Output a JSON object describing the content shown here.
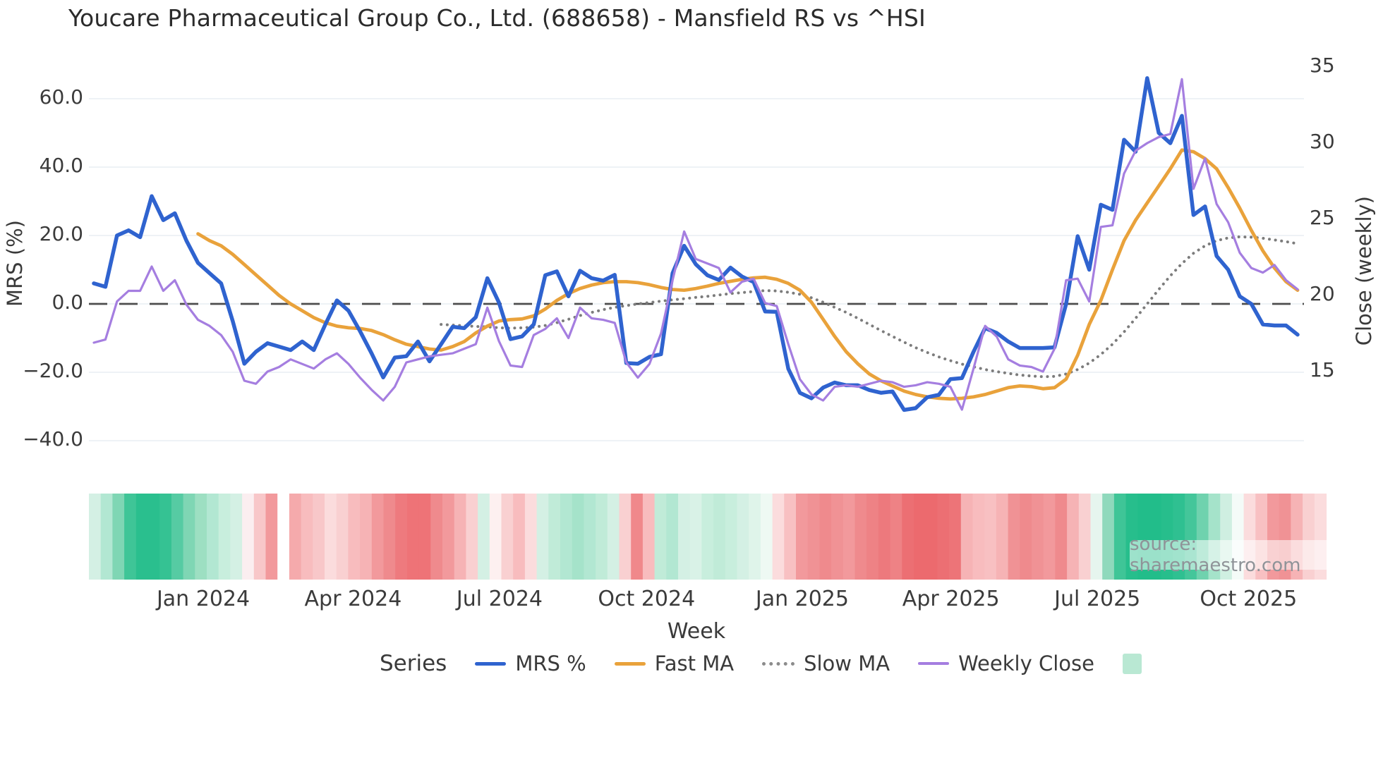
{
  "title": "Youcare Pharmaceutical Group Co., Ltd. (688658) - Mansfield RS vs ^HSI",
  "watermark": "source: sharemaestro.com",
  "axes": {
    "left": {
      "label": "MRS (%)",
      "ticks": [
        "60.0",
        "40.0",
        "20.0",
        "0.0",
        "−20.0",
        "−40.0"
      ],
      "tick_values": [
        60,
        40,
        20,
        0,
        -20,
        -40
      ],
      "range": [
        -47,
        72
      ]
    },
    "right": {
      "label": "Close (weekly)",
      "ticks": [
        "35",
        "30",
        "25",
        "20",
        "15"
      ],
      "tick_values": [
        35,
        30,
        25,
        20,
        15
      ],
      "range": [
        12.5,
        35.7
      ]
    },
    "x": {
      "label": "Week",
      "ticks": [
        {
          "label": "Jan 2024",
          "week_index": 9.45
        },
        {
          "label": "Apr 2024",
          "week_index": 22.4
        },
        {
          "label": "Jul 2024",
          "week_index": 35.05
        },
        {
          "label": "Oct 2024",
          "week_index": 47.75
        },
        {
          "label": "Jan 2025",
          "week_index": 61.2
        },
        {
          "label": "Apr 2025",
          "week_index": 74.05
        },
        {
          "label": "Jul 2025",
          "week_index": 86.7
        },
        {
          "label": "Oct 2025",
          "week_index": 99.75
        }
      ]
    }
  },
  "legend": {
    "title": "Series",
    "items": [
      {
        "label": "MRS %",
        "swatch": "line",
        "color": "#2f63cf"
      },
      {
        "label": "Fast MA",
        "swatch": "line",
        "color": "#e9a23b"
      },
      {
        "label": "Slow MA",
        "swatch": "dotted",
        "color": "#8c8c8c"
      },
      {
        "label": "Weekly Close",
        "swatch": "thin",
        "color": "#a57ee0"
      },
      {
        "label": "",
        "swatch": "square",
        "color": "#b9e8d3"
      }
    ]
  },
  "colors": {
    "mrs": "#2f63cf",
    "fast_ma": "#e9a23b",
    "slow_ma": "#7c7c7c",
    "weekly_close": "#a57ee0",
    "zero_dash": "#4d4d4d",
    "grid": "#e9edf3",
    "heat_green_max": "#22bd8a",
    "heat_red_max": "#ec6a6e"
  },
  "chart_data": {
    "type": "line",
    "title": "Youcare Pharmaceutical Group Co., Ltd. (688658) - Mansfield RS vs ^HSI",
    "xlabel": "Week",
    "ylabel_left": "MRS (%)",
    "ylabel_right": "Close (weekly)",
    "x_unit": "week_index",
    "weeks": 105,
    "grid": "horizontal-only",
    "legend_position": "bottom",
    "series": [
      {
        "name": "MRS %",
        "axis": "left",
        "style": "solid",
        "color": "#2f63cf",
        "width": 5.5,
        "values": [
          6,
          5,
          20,
          21.5,
          19.5,
          31.5,
          24.5,
          26.5,
          18.5,
          12,
          9,
          6,
          -5,
          -17.5,
          -14,
          -11.5,
          -12.5,
          -13.5,
          -11,
          -13.5,
          -6,
          1,
          -2,
          -8,
          -14.5,
          -21.5,
          -15.7,
          -15.3,
          -11,
          -16.8,
          -11.8,
          -6.7,
          -7.1,
          -3.9,
          7.5,
          0.4,
          -10.3,
          -9.5,
          -6,
          8.4,
          9.5,
          2.2,
          9.7,
          7.5,
          6.8,
          8.5,
          -17.3,
          -17.5,
          -15.5,
          -14.7,
          9,
          17,
          11.6,
          8.4,
          7,
          10.6,
          8,
          6.4,
          -2.2,
          -2.3,
          -19,
          -26,
          -27.6,
          -24.5,
          -23,
          -23.8,
          -23.8,
          -25.2,
          -26,
          -25.6,
          -31,
          -30.5,
          -27.3,
          -26.6,
          -22,
          -21.7,
          -14,
          -7.1,
          -8.5,
          -11,
          -12.9,
          -12.9,
          -12.9,
          -12.7,
          0,
          19.8,
          10,
          29,
          27.5,
          48,
          44.5,
          66,
          50,
          47,
          55,
          26,
          28.5,
          14,
          10,
          2.2,
          0,
          -6,
          -6.3,
          -6.3,
          -9
        ]
      },
      {
        "name": "Fast MA",
        "axis": "left",
        "style": "solid",
        "color": "#e9a23b",
        "width": 4.8,
        "values": [
          null,
          null,
          null,
          null,
          null,
          null,
          null,
          null,
          null,
          20.5,
          18.5,
          17,
          14.5,
          11.5,
          8.5,
          5.5,
          2.5,
          0,
          -2,
          -4,
          -5.5,
          -6.5,
          -7,
          -7.2,
          -7.8,
          -9,
          -10.5,
          -11.8,
          -12.5,
          -13.2,
          -13.5,
          -12.5,
          -11,
          -8.5,
          -6.5,
          -5,
          -4.6,
          -4.4,
          -3.5,
          -1.5,
          1,
          3,
          4.5,
          5.5,
          6.2,
          6.5,
          6.5,
          6.2,
          5.6,
          4.8,
          4.2,
          4,
          4.5,
          5.2,
          6,
          6.6,
          7.2,
          7.6,
          7.8,
          7.2,
          6,
          4,
          0.5,
          -4.5,
          -9.5,
          -14,
          -17.5,
          -20.5,
          -22.5,
          -24,
          -25.5,
          -26.5,
          -27.2,
          -27.6,
          -27.8,
          -27.6,
          -27.2,
          -26.5,
          -25.5,
          -24.5,
          -24,
          -24.2,
          -24.8,
          -24.5,
          -22,
          -15,
          -6,
          1,
          10,
          18.5,
          24.5,
          29.5,
          34.5,
          39.5,
          45,
          44.5,
          42.5,
          39.5,
          34,
          28,
          21.5,
          15.5,
          10.5,
          6.5,
          4
        ]
      },
      {
        "name": "Slow MA",
        "axis": "left",
        "style": "dotted",
        "color": "#7c7c7c",
        "width": 4,
        "values": [
          null,
          null,
          null,
          null,
          null,
          null,
          null,
          null,
          null,
          null,
          null,
          null,
          null,
          null,
          null,
          null,
          null,
          null,
          null,
          null,
          null,
          null,
          null,
          null,
          null,
          null,
          null,
          null,
          null,
          null,
          -6,
          -6.2,
          -6.4,
          -6.6,
          -6.7,
          -7,
          -7.1,
          -7,
          -6.8,
          -6.3,
          -5.5,
          -4.5,
          -3.4,
          -2.5,
          -1.7,
          -1,
          -0.5,
          0,
          0.4,
          0.8,
          1.2,
          1.5,
          1.9,
          2.2,
          2.6,
          3,
          3.3,
          3.6,
          3.9,
          3.8,
          3.4,
          2.8,
          1.8,
          0.5,
          -1,
          -2.5,
          -4.2,
          -6,
          -7.8,
          -9.5,
          -11.2,
          -12.8,
          -14.2,
          -15.5,
          -16.6,
          -17.6,
          -18.4,
          -19.2,
          -19.8,
          -20.3,
          -20.8,
          -21.1,
          -21.3,
          -21.2,
          -20.5,
          -19.2,
          -17.3,
          -14.8,
          -11.8,
          -8.2,
          -4.2,
          0,
          4.2,
          8.2,
          11.8,
          14.8,
          17,
          18.5,
          19.3,
          19.6,
          19.5,
          19.2,
          18.7,
          18.2,
          17.6
        ]
      },
      {
        "name": "Weekly Close",
        "axis": "right",
        "style": "solid",
        "color": "#a57ee0",
        "width": 3.2,
        "values": [
          16.9,
          17.1,
          19.6,
          20.3,
          20.3,
          21.9,
          20.3,
          21,
          19.4,
          18.4,
          18,
          17.4,
          16.3,
          14.4,
          14.2,
          15,
          15.3,
          15.8,
          15.5,
          15.2,
          15.8,
          16.2,
          15.5,
          14.6,
          13.8,
          13.1,
          14,
          15.6,
          15.8,
          16,
          16.1,
          16.2,
          16.5,
          16.8,
          19.2,
          17,
          15.4,
          15.3,
          17.4,
          17.8,
          18.5,
          17.2,
          19.2,
          18.5,
          18.4,
          18.2,
          15.6,
          14.6,
          15.5,
          17.5,
          21,
          24.2,
          22.4,
          22.1,
          21.8,
          20.2,
          20.9,
          21.1,
          19.5,
          19.3,
          16.8,
          14.5,
          13.5,
          13.1,
          14,
          14.1,
          14,
          14.2,
          14.4,
          14.3,
          14,
          14.1,
          14.3,
          14.2,
          14,
          12.5,
          15.2,
          18,
          17.3,
          15.8,
          15.4,
          15.3,
          15,
          16.5,
          21,
          21.1,
          19.6,
          24.5,
          24.6,
          28,
          29.5,
          30,
          30.4,
          30.6,
          34.2,
          27,
          29,
          26,
          24.8,
          22.8,
          21.8,
          21.5,
          22,
          21,
          20.4
        ]
      }
    ],
    "zero_reference_line": {
      "axis": "left",
      "value": 0,
      "style": "dashed"
    },
    "heatmap_strip": {
      "description": "weekly relative-strength heat band, red=weak green=strong",
      "colors": [
        "#d4f0e4",
        "#b2e7d2",
        "#7fd6b4",
        "#3fc597",
        "#2abf8e",
        "#2abf8e",
        "#35c293",
        "#56cba3",
        "#7fd6b4",
        "#9ddfc2",
        "#b2e7d2",
        "#c8eedd",
        "#d4f0e4",
        "#fbeef0",
        "#f8c7c9",
        "#f2999c",
        "#ffffff",
        "#f5aaac",
        "#f8bcbe",
        "#f8c7c9",
        "#fbdcdd",
        "#f9d0d1",
        "#f8bcbe",
        "#f6b3b5",
        "#f2999c",
        "#ef8a8d",
        "#ee7a7e",
        "#ee7377",
        "#ee7377",
        "#ef8a8d",
        "#f2999c",
        "#f6b3b5",
        "#f9d0d1",
        "#d4f0e4",
        "#fdf0f0",
        "#f9d0d1",
        "#f8bcbe",
        "#fbdcdd",
        "#d4f0e4",
        "#c0ebd8",
        "#b2e7d2",
        "#a5e3ca",
        "#b2e7d2",
        "#c0ebd8",
        "#d4f0e4",
        "#f9d0d1",
        "#f0888b",
        "#f8bcbe",
        "#c0ebd8",
        "#b2e7d2",
        "#d4f0e4",
        "#d9f2e7",
        "#c8eedd",
        "#c0ebd8",
        "#c8eedd",
        "#d4f0e4",
        "#dff4ea",
        "#eef9f3",
        "#fbdcdd",
        "#f8c0c2",
        "#f2999c",
        "#f09295",
        "#ef8a8d",
        "#f09295",
        "#f2999c",
        "#ef8a8d",
        "#ee8285",
        "#ed797d",
        "#ee8285",
        "#ec6f73",
        "#ec6a6e",
        "#ec6a6e",
        "#ec6f73",
        "#ed7478",
        "#f6b3b5",
        "#f8bcbe",
        "#f8c0c2",
        "#f6b3b5",
        "#f09295",
        "#ef8a8d",
        "#f09295",
        "#f2999c",
        "#ef8a8d",
        "#f6b3b5",
        "#f9d0d1",
        "#e6f5ee",
        "#8fd9bc",
        "#3fc597",
        "#27be8c",
        "#22bd8a",
        "#22bd8a",
        "#27be8c",
        "#2fc091",
        "#44c69a",
        "#6fd2ae",
        "#a5e3ca",
        "#cfefe1",
        "#f4fbf8",
        "#fbdcdd",
        "#f8c0c2",
        "#f2999c",
        "#f09295",
        "#f6b3b5",
        "#f9d0d1",
        "#fbdcdd"
      ]
    }
  }
}
